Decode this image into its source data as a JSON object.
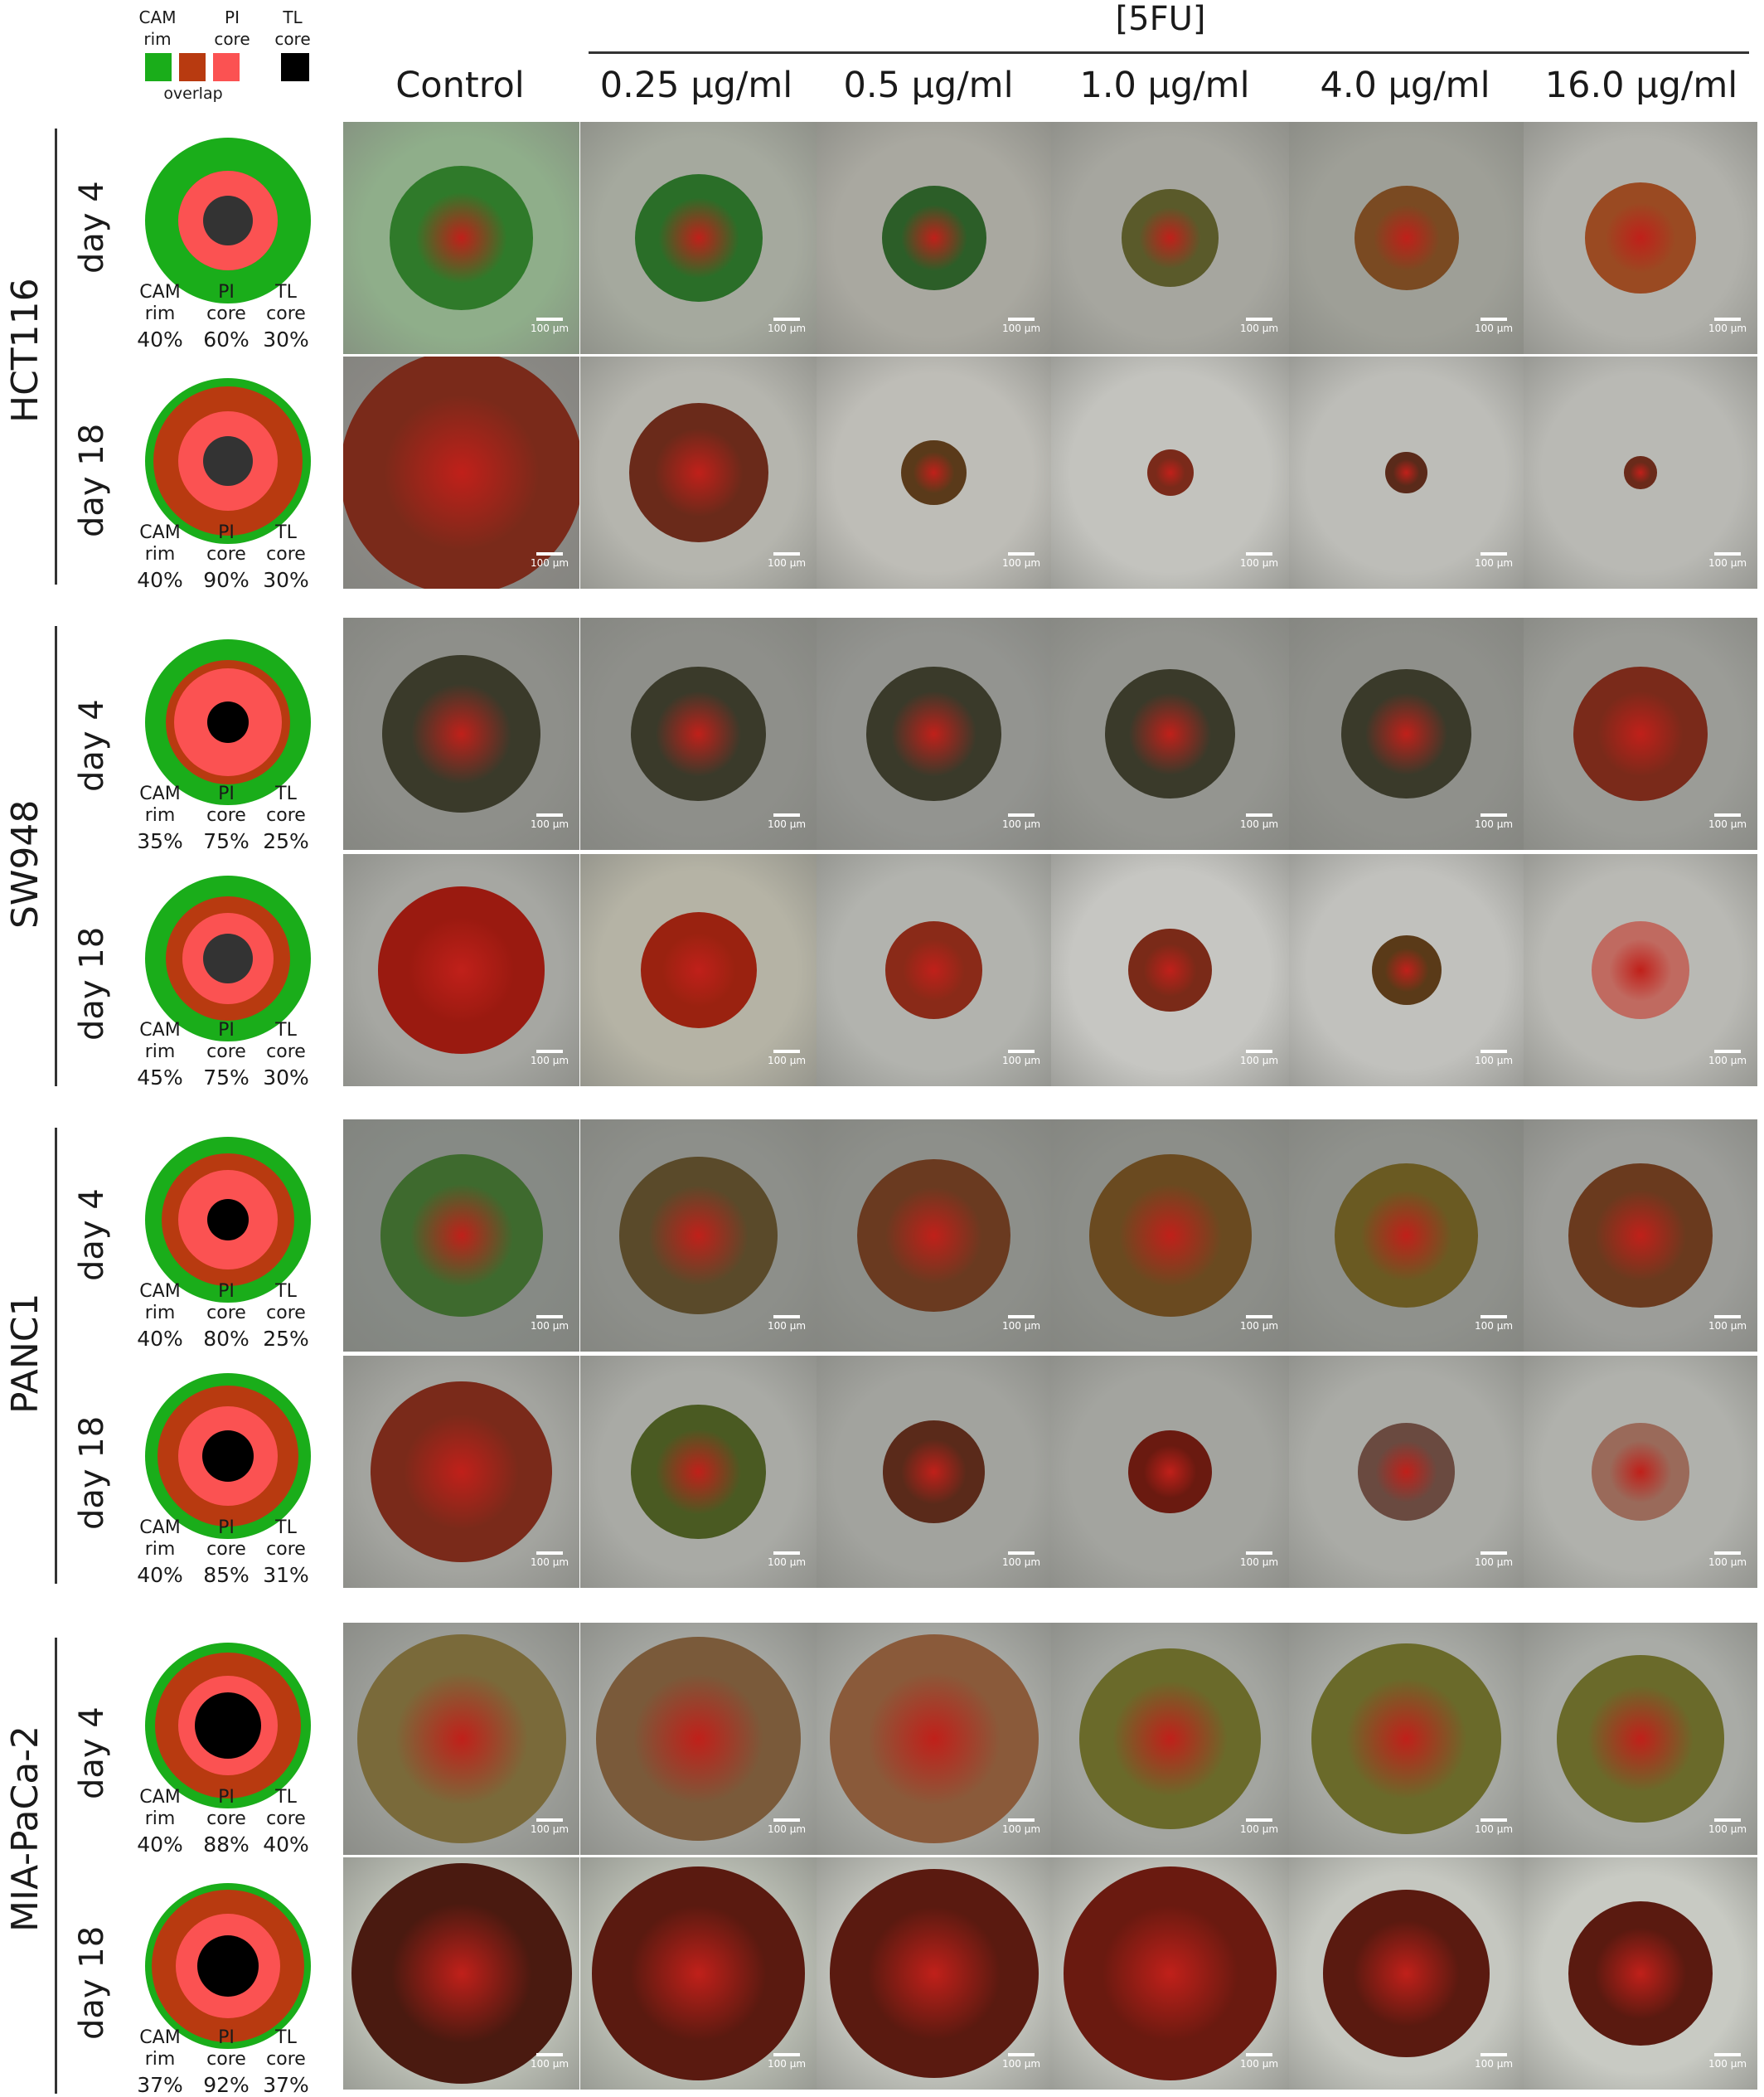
{
  "legend": {
    "cam": "CAM",
    "rim": "rim",
    "pi": "PI",
    "core": "core",
    "tl": "TL",
    "tl_core": "core",
    "overlap": "overlap",
    "colors": {
      "cam": "#1aad1a",
      "overlap": "#b83a10",
      "pi": "#fb5252",
      "tl": "#000000"
    }
  },
  "group_title": "[5FU]",
  "columns": [
    "Control",
    "0.25 µg/ml",
    "0.5 µg/ml",
    "1.0 µg/ml",
    "4.0 µg/ml",
    "16.0 µg/ml"
  ],
  "stat_labels": {
    "cam": "CAM",
    "rim": "rim",
    "pi": "PI",
    "pi_core": "core",
    "tl": "TL",
    "tl_core": "core"
  },
  "scale_text": "100 µm",
  "rows": [
    {
      "cell_line": "HCT116",
      "days": [
        {
          "day": "day 4",
          "cam": "40%",
          "pi": "60%",
          "tl": "30%"
        },
        {
          "day": "day 18",
          "cam": "40%",
          "pi": "90%",
          "tl": "30%"
        }
      ]
    },
    {
      "cell_line": "SW948",
      "days": [
        {
          "day": "day 4",
          "cam": "35%",
          "pi": "75%",
          "tl": "25%"
        },
        {
          "day": "day 18",
          "cam": "45%",
          "pi": "75%",
          "tl": "30%"
        }
      ]
    },
    {
      "cell_line": "PANC1",
      "days": [
        {
          "day": "day 4",
          "cam": "40%",
          "pi": "80%",
          "tl": "25%"
        },
        {
          "day": "day 18",
          "cam": "40%",
          "pi": "85%",
          "tl": "31%"
        }
      ]
    },
    {
      "cell_line": "MIA-PaCa-2",
      "days": [
        {
          "day": "day 4",
          "cam": "40%",
          "pi": "88%",
          "tl": "40%"
        },
        {
          "day": "day 18",
          "cam": "37%",
          "pi": "92%",
          "tl": "37%"
        }
      ]
    }
  ]
}
